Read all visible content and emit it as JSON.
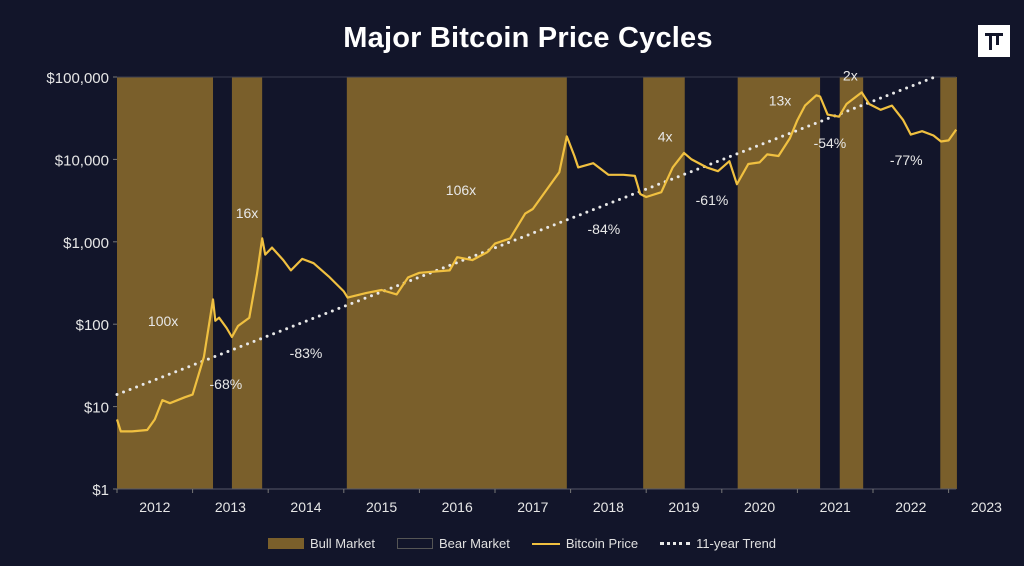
{
  "chart_data": {
    "type": "line",
    "title": "Major Bitcoin Price Cycles",
    "xlabel": "",
    "ylabel": "",
    "y_scale": "log",
    "ylim": [
      1,
      100000
    ],
    "xlim": [
      2012.0,
      2023.1
    ],
    "y_ticks": [
      "$1",
      "$10",
      "$100",
      "$1,000",
      "$10,000",
      "$100,000"
    ],
    "y_tick_values": [
      1,
      10,
      100,
      1000,
      10000,
      100000
    ],
    "x_ticks": [
      "2012",
      "2013",
      "2014",
      "2015",
      "2016",
      "2017",
      "2018",
      "2019",
      "2020",
      "2021",
      "2022",
      "2023"
    ],
    "grid": false,
    "legend_placement": "bottom",
    "legend": [
      "Bull Market",
      "Bear Market",
      "Bitcoin Price",
      "11-year Trend"
    ],
    "colors": {
      "background": "#12152a",
      "bull": "#7a5f2b",
      "price": "#f0c040",
      "trend": "#e8e8e8"
    },
    "bull_markets": [
      [
        2012.0,
        2013.27
      ],
      [
        2013.52,
        2013.92
      ],
      [
        2015.04,
        2017.95
      ],
      [
        2018.96,
        2019.51
      ],
      [
        2020.21,
        2021.3
      ],
      [
        2021.56,
        2021.87
      ],
      [
        2022.89,
        2023.11
      ]
    ],
    "price_series": {
      "name": "Bitcoin Price",
      "x": [
        2012.0,
        2012.05,
        2012.2,
        2012.4,
        2012.5,
        2012.6,
        2012.7,
        2012.9,
        2013.0,
        2013.15,
        2013.27,
        2013.3,
        2013.35,
        2013.45,
        2013.52,
        2013.6,
        2013.75,
        2013.85,
        2013.92,
        2013.96,
        2014.05,
        2014.2,
        2014.3,
        2014.45,
        2014.6,
        2014.8,
        2015.0,
        2015.05,
        2015.3,
        2015.5,
        2015.7,
        2015.85,
        2016.0,
        2016.4,
        2016.5,
        2016.7,
        2016.9,
        2017.0,
        2017.2,
        2017.4,
        2017.5,
        2017.7,
        2017.85,
        2017.95,
        2018.05,
        2018.1,
        2018.3,
        2018.5,
        2018.7,
        2018.85,
        2018.92,
        2019.0,
        2019.2,
        2019.35,
        2019.5,
        2019.6,
        2019.8,
        2019.95,
        2020.1,
        2020.2,
        2020.35,
        2020.5,
        2020.6,
        2020.75,
        2020.9,
        2021.0,
        2021.1,
        2021.25,
        2021.3,
        2021.4,
        2021.55,
        2021.65,
        2021.85,
        2021.95,
        2022.1,
        2022.25,
        2022.4,
        2022.5,
        2022.65,
        2022.8,
        2022.9,
        2023.0,
        2023.1
      ],
      "y": [
        7,
        5,
        5,
        5.2,
        7,
        12,
        11,
        13,
        14,
        40,
        200,
        110,
        120,
        90,
        70,
        95,
        120,
        400,
        1100,
        700,
        850,
        600,
        450,
        620,
        550,
        380,
        250,
        210,
        240,
        260,
        230,
        370,
        420,
        450,
        650,
        600,
        750,
        950,
        1100,
        2200,
        2500,
        4500,
        7000,
        19000,
        11000,
        8000,
        9000,
        6500,
        6500,
        6300,
        3800,
        3500,
        4000,
        8000,
        12000,
        10000,
        8000,
        7200,
        9500,
        5000,
        8800,
        9200,
        11500,
        11000,
        18000,
        30000,
        45000,
        60000,
        58000,
        35000,
        33000,
        47000,
        65000,
        47000,
        40000,
        45000,
        30000,
        20000,
        22000,
        19500,
        16500,
        17000,
        23000
      ]
    },
    "trend": {
      "name": "11-year Trend",
      "x": [
        2012.0,
        2022.82
      ],
      "y": [
        14,
        100000
      ]
    },
    "annotations": [
      {
        "text": "100x",
        "x": 2012.61,
        "y": 110
      },
      {
        "text": "16x",
        "x": 2013.72,
        "y": 2240
      },
      {
        "text": "106x",
        "x": 2016.55,
        "y": 4260
      },
      {
        "text": "4x",
        "x": 2019.25,
        "y": 19000
      },
      {
        "text": "13x",
        "x": 2020.77,
        "y": 52000
      },
      {
        "text": "2x",
        "x": 2021.7,
        "y": 105000
      },
      {
        "text": "-68%",
        "x": 2013.44,
        "y": 18.7
      },
      {
        "text": "-83%",
        "x": 2014.5,
        "y": 45
      },
      {
        "text": "-84%",
        "x": 2018.44,
        "y": 1440
      },
      {
        "text": "-61%",
        "x": 2019.87,
        "y": 3200
      },
      {
        "text": "-54%",
        "x": 2021.43,
        "y": 15800
      },
      {
        "text": "-77%",
        "x": 2022.44,
        "y": 9800
      }
    ]
  }
}
